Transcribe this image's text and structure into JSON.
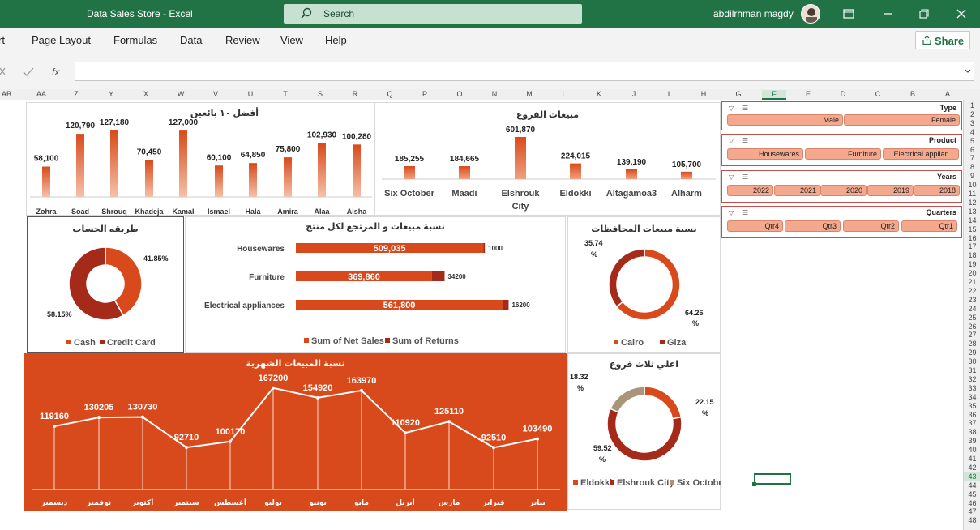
{
  "app": {
    "title": "Data Sales Store  -  Excel",
    "search_placeholder": "Search",
    "user": "abdilrhman magdy",
    "share": "Share"
  },
  "menu": [
    "rt",
    "Page Layout",
    "Formulas",
    "Data",
    "Review",
    "View",
    "Help"
  ],
  "columns": [
    "AB",
    "AA",
    "Z",
    "Y",
    "X",
    "W",
    "V",
    "U",
    "T",
    "S",
    "R",
    "Q",
    "P",
    "O",
    "N",
    "M",
    "L",
    "K",
    "J",
    "I",
    "H",
    "G",
    "F",
    "E",
    "D",
    "C",
    "B",
    "A"
  ],
  "rows": [
    "1",
    "2",
    "3",
    "4",
    "5",
    "6",
    "7",
    "8",
    "9",
    "10",
    "11",
    "12",
    "13",
    "14",
    "15",
    "16",
    "17",
    "18",
    "19",
    "20",
    "21",
    "22",
    "23",
    "24",
    "25",
    "26",
    "27",
    "28",
    "29",
    "30",
    "31",
    "32",
    "33",
    "34",
    "35",
    "36",
    "37",
    "38",
    "39",
    "40",
    "41",
    "42",
    "43",
    "44",
    "45",
    "46",
    "47",
    "48"
  ],
  "slicers": [
    {
      "name": "Type",
      "items": [
        "Male",
        "Female"
      ]
    },
    {
      "name": "Product",
      "items": [
        "Housewares",
        "Furniture",
        "Electrical applian..."
      ]
    },
    {
      "name": "Years",
      "items": [
        "2022",
        "2021",
        "2020",
        "2019",
        "2018"
      ]
    },
    {
      "name": "Quarters",
      "items": [
        "Qtr4",
        "Qtr3",
        "Qtr2",
        "Qtr1"
      ]
    }
  ],
  "colors": {
    "accent": "#d84a1b",
    "dark": "#a52a1a",
    "tan": "#a8957a",
    "green": "#217346"
  },
  "chart_data": [
    {
      "type": "bar",
      "title": "أفضل ١٠ بائعين",
      "categories": [
        "Zohra",
        "Soad",
        "Shrouq",
        "Khadeja",
        "Kamal",
        "Ismael",
        "Hala",
        "Amira",
        "Alaa",
        "Aisha"
      ],
      "values": [
        58100,
        120790,
        127180,
        70450,
        127000,
        60100,
        64850,
        75800,
        102930,
        100280
      ],
      "labels": [
        "58,100",
        "120,790",
        "127,180",
        "70,450",
        "127,000",
        "60,100",
        "64,850",
        "75,800",
        "102,930",
        "100,280"
      ]
    },
    {
      "type": "bar",
      "title": "مبيعات الفروع",
      "categories": [
        "Six October",
        "Maadi",
        "Elshrouk City",
        "Eldokki",
        "Altagamoa3",
        "Alharm"
      ],
      "values": [
        185255,
        184665,
        601870,
        224015,
        139190,
        105700
      ],
      "labels": [
        "185,255",
        "184,665",
        "601,870",
        "224,015",
        "139,190",
        "105,700"
      ]
    },
    {
      "type": "pie",
      "title": "طريقه الحساب",
      "categories": [
        "Cash",
        "Credit Card"
      ],
      "values": [
        41.85,
        58.15
      ],
      "labels": [
        "41.85%",
        "58.15%"
      ]
    },
    {
      "type": "bar",
      "title": "نسبة مبيعات و المرتجع لكل منتج",
      "categories": [
        "Housewares",
        "Furniture",
        "Electrical appliances"
      ],
      "series": [
        {
          "name": "Sum of Net Sales",
          "values": [
            509035,
            369860,
            561800
          ],
          "labels": [
            "509,035",
            "369,860",
            "561,800"
          ]
        },
        {
          "name": "Sum of Returns",
          "values": [
            1000,
            34200,
            16200
          ],
          "labels": [
            "1000",
            "34200",
            "16200"
          ]
        }
      ]
    },
    {
      "type": "pie",
      "title": "نسبة مبيعات المحافظات",
      "categories": [
        "Cairo",
        "Giza"
      ],
      "values": [
        64.26,
        35.74
      ],
      "labels": [
        "64.26 %",
        "35.74 %"
      ]
    },
    {
      "type": "line",
      "title": "نسبة المبيعات الشهرية",
      "categories": [
        "ديسمبر",
        "نوفمبر",
        "أكتوبر",
        "سبتمبر",
        "أغسطس",
        "يوليو",
        "يونيو",
        "مايو",
        "أبريل",
        "مارس",
        "فبراير",
        "يناير"
      ],
      "values": [
        119160,
        130205,
        130730,
        92710,
        100170,
        167200,
        154920,
        163970,
        110920,
        125110,
        92510,
        103490
      ]
    },
    {
      "type": "pie",
      "title": "اعلي ثلاث فروع",
      "categories": [
        "Eldokki",
        "Elshrouk City",
        "Six October"
      ],
      "values": [
        22.15,
        59.52,
        18.32
      ],
      "labels": [
        "22.15 %",
        "59.52 %",
        "18.32 %"
      ]
    }
  ]
}
